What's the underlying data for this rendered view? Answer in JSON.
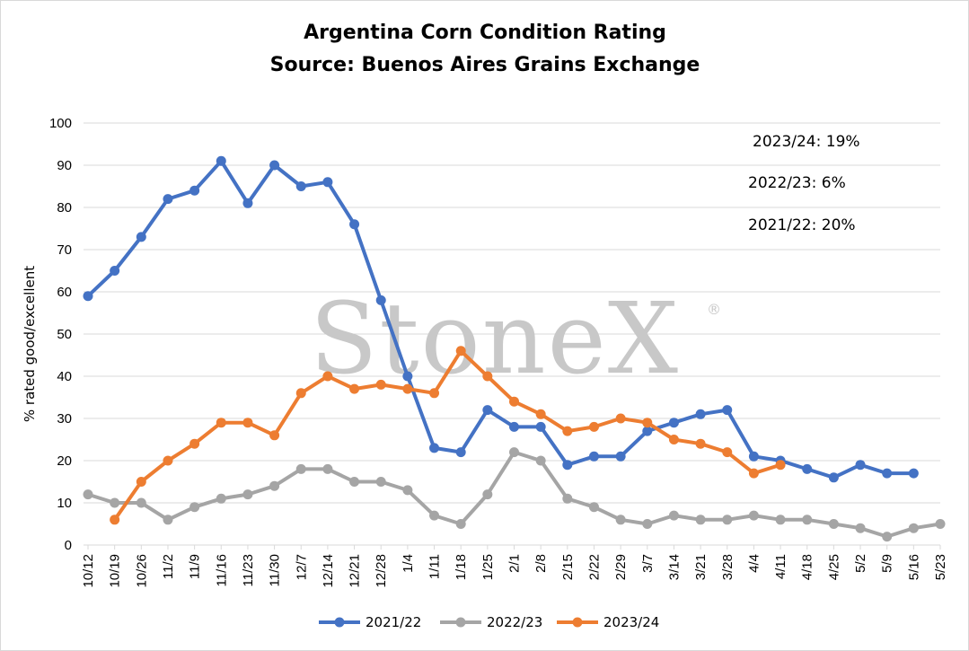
{
  "chart_data": {
    "type": "line",
    "title": "Argentina Corn Condition Rating",
    "subtitle": "Source: Buenos Aires Grains Exchange",
    "xlabel": "",
    "ylabel": "% rated good/excellent",
    "ylim": [
      0,
      100
    ],
    "yticks": [
      0,
      10,
      20,
      30,
      40,
      50,
      60,
      70,
      80,
      90,
      100
    ],
    "grid": "horizontal",
    "legend_position": "bottom",
    "watermark": "StoneX",
    "watermark_mark": "®",
    "categories": [
      "10/12",
      "10/19",
      "10/26",
      "11/2",
      "11/9",
      "11/16",
      "11/23",
      "11/30",
      "12/7",
      "12/14",
      "12/21",
      "12/28",
      "1/4",
      "1/11",
      "1/18",
      "1/25",
      "2/1",
      "2/8",
      "2/15",
      "2/22",
      "2/29",
      "3/7",
      "3/14",
      "3/21",
      "3/28",
      "4/4",
      "4/11",
      "4/18",
      "4/25",
      "5/2",
      "5/9",
      "5/16",
      "5/23"
    ],
    "series": [
      {
        "name": "2021/22",
        "color": "#4472C4",
        "values": [
          59,
          65,
          73,
          82,
          84,
          91,
          81,
          90,
          85,
          86,
          76,
          58,
          40,
          23,
          22,
          32,
          28,
          28,
          19,
          21,
          21,
          27,
          29,
          31,
          32,
          21,
          20,
          18,
          16,
          19,
          17,
          17,
          null
        ]
      },
      {
        "name": "2022/23",
        "color": "#A5A5A5",
        "values": [
          12,
          10,
          10,
          6,
          9,
          11,
          12,
          14,
          18,
          18,
          15,
          15,
          13,
          7,
          5,
          12,
          22,
          20,
          11,
          9,
          6,
          5,
          7,
          6,
          6,
          7,
          6,
          6,
          5,
          4,
          2,
          4,
          5
        ]
      },
      {
        "name": "2023/24",
        "color": "#ED7D31",
        "values": [
          null,
          6,
          15,
          20,
          24,
          29,
          29,
          26,
          36,
          40,
          37,
          38,
          37,
          36,
          46,
          40,
          34,
          31,
          27,
          28,
          30,
          29,
          25,
          24,
          22,
          17,
          19,
          null,
          null,
          null,
          null,
          null,
          null
        ]
      }
    ],
    "annotations": [
      "2023/24: 19%",
      "2022/23: 6%",
      "2021/22: 20%"
    ]
  }
}
